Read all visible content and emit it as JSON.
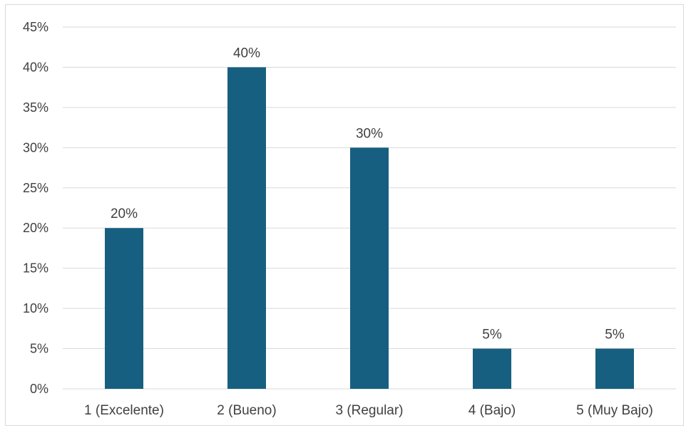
{
  "chart_data": {
    "type": "bar",
    "categories": [
      "1 (Excelente)",
      "2 (Bueno)",
      "3 (Regular)",
      "4 (Bajo)",
      "5 (Muy Bajo)"
    ],
    "values": [
      20,
      40,
      30,
      5,
      5
    ],
    "data_labels": [
      "20%",
      "40%",
      "30%",
      "5%",
      "5%"
    ],
    "ylim": [
      0,
      45
    ],
    "ytick_step": 5,
    "ytick_labels": [
      "0%",
      "5%",
      "10%",
      "15%",
      "20%",
      "25%",
      "30%",
      "35%",
      "40%",
      "45%"
    ],
    "grid": true,
    "legend": "none",
    "bar_color": "#175f80",
    "gridline_color": "#d9d9d9",
    "text_color": "#404040"
  }
}
